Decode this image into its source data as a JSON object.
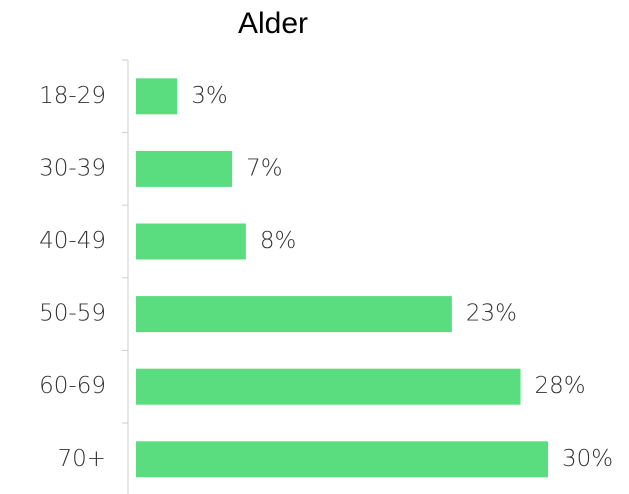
{
  "chart_data": {
    "type": "bar",
    "orientation": "horizontal",
    "title": "Alder",
    "categories": [
      "18-29",
      "30-39",
      "40-49",
      "50-59",
      "60-69",
      "70+"
    ],
    "values": [
      3,
      7,
      8,
      23,
      28,
      30
    ],
    "value_labels": [
      "3%",
      "7%",
      "8%",
      "23%",
      "28%",
      "30%"
    ],
    "color": "#5add7e"
  }
}
